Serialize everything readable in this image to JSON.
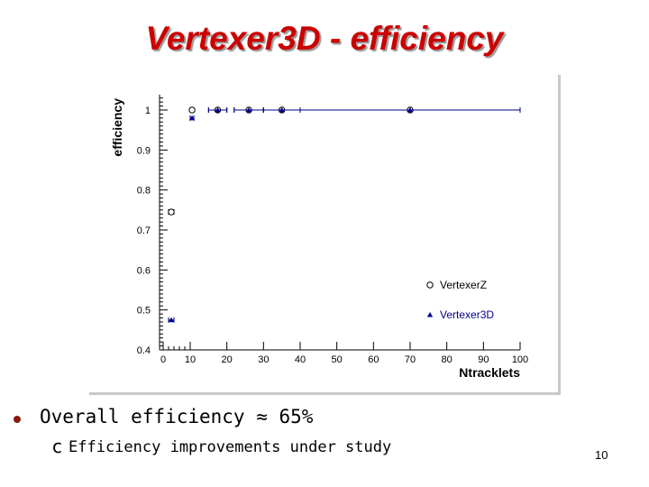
{
  "slide": {
    "title": "Vertexer3D - efficiency",
    "bullet": "Overall efficiency ≈ 65%",
    "sub_marker": "c",
    "sub_bullet": "Efficiency improvements under study",
    "page_number": "10"
  },
  "colors": {
    "title": "#cc0000",
    "vertexerZ": "#000000",
    "vertexer3D": "#00008b",
    "axes": "#000000",
    "bullet": "#8a1a10"
  },
  "chart_data": {
    "type": "scatter",
    "title": "",
    "xlabel": "Ntracklets",
    "ylabel": "efficiency",
    "xlim": [
      0,
      100
    ],
    "ylim": [
      0.4,
      1.05
    ],
    "x_scale": "piecewise: 0-10 expanded, 10-100 linear",
    "xticks": [
      0,
      10,
      20,
      30,
      40,
      50,
      60,
      70,
      80,
      90,
      100
    ],
    "xtick_labels": [
      "0",
      "10",
      "20",
      "30",
      "40",
      "50",
      "60",
      "70",
      "80",
      "90",
      "100"
    ],
    "yticks": [
      0.4,
      0.5,
      0.6,
      0.7,
      0.8,
      0.9,
      1.0
    ],
    "ytick_labels": [
      "0.4",
      "0.5",
      "0.6",
      "0.7",
      "0.8",
      "0.9",
      "1"
    ],
    "grid": false,
    "legend_position": "bottom-right",
    "series": [
      {
        "name": "VertexerZ",
        "marker": "open-circle",
        "points": [
          {
            "x": 3,
            "y": 0.745,
            "xerr": [
              2,
              4
            ]
          },
          {
            "x": 10.5,
            "y": 1.0,
            "xerr": [
              10,
              11
            ]
          },
          {
            "x": 17.5,
            "y": 1.0,
            "xerr": [
              15,
              20
            ]
          },
          {
            "x": 26,
            "y": 1.0,
            "xerr": [
              22,
              30
            ]
          },
          {
            "x": 35,
            "y": 1.0,
            "xerr": [
              30,
              40
            ]
          },
          {
            "x": 70,
            "y": 1.0,
            "xerr": [
              40,
              100
            ]
          }
        ]
      },
      {
        "name": "Vertexer3D",
        "marker": "filled-triangle",
        "points": [
          {
            "x": 3,
            "y": 0.475,
            "xerr": [
              2,
              4
            ]
          },
          {
            "x": 10.5,
            "y": 0.98,
            "xerr": [
              10,
              11
            ]
          },
          {
            "x": 17.5,
            "y": 1.0,
            "xerr": [
              15,
              20
            ]
          },
          {
            "x": 26,
            "y": 1.0,
            "xerr": [
              22,
              30
            ]
          },
          {
            "x": 35,
            "y": 1.0,
            "xerr": [
              30,
              40
            ]
          },
          {
            "x": 70,
            "y": 1.0,
            "xerr": [
              40,
              100
            ]
          }
        ]
      }
    ]
  }
}
